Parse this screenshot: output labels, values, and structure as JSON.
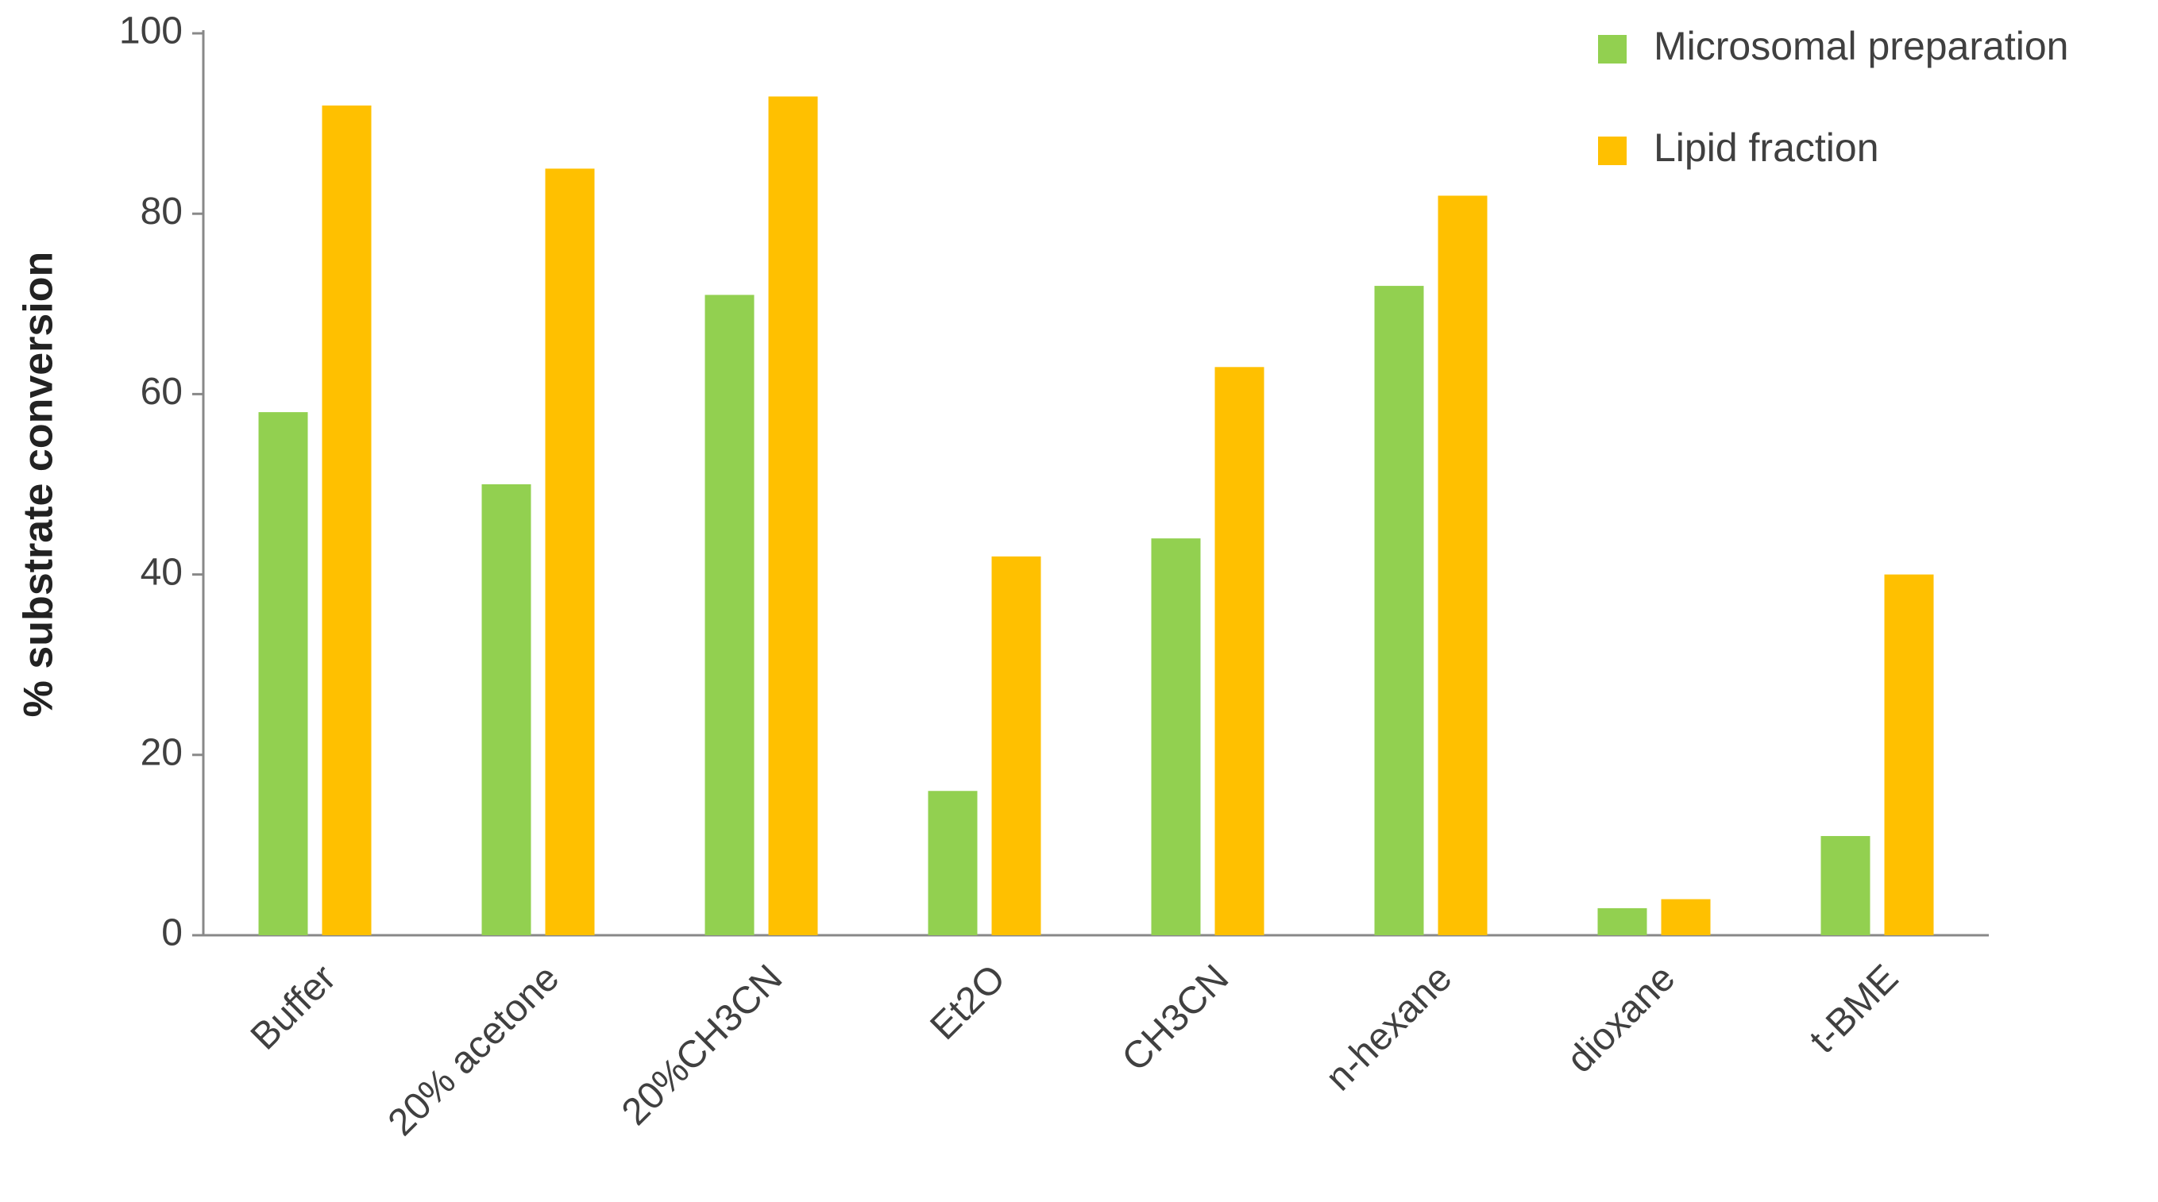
{
  "chart_data": {
    "type": "bar",
    "y_label": "% substrate conversion",
    "categories": [
      "Buffer",
      "20% acetone",
      "20%CH3CN",
      "Et2O",
      "CH3CN",
      "n-hexane",
      "dioxane",
      "t-BME"
    ],
    "series": [
      {
        "name": "Microsomal preparation",
        "color": "#92d050",
        "values": [
          58,
          50,
          71,
          16,
          44,
          72,
          3,
          11
        ]
      },
      {
        "name": "Lipid fraction",
        "color": "#ffc000",
        "values": [
          92,
          85,
          93,
          42,
          63,
          82,
          4,
          40
        ]
      }
    ],
    "ylim": [
      0,
      100
    ],
    "yticks": [
      0,
      20,
      40,
      60,
      80,
      100
    ],
    "legend": "top-right",
    "grid": false
  }
}
